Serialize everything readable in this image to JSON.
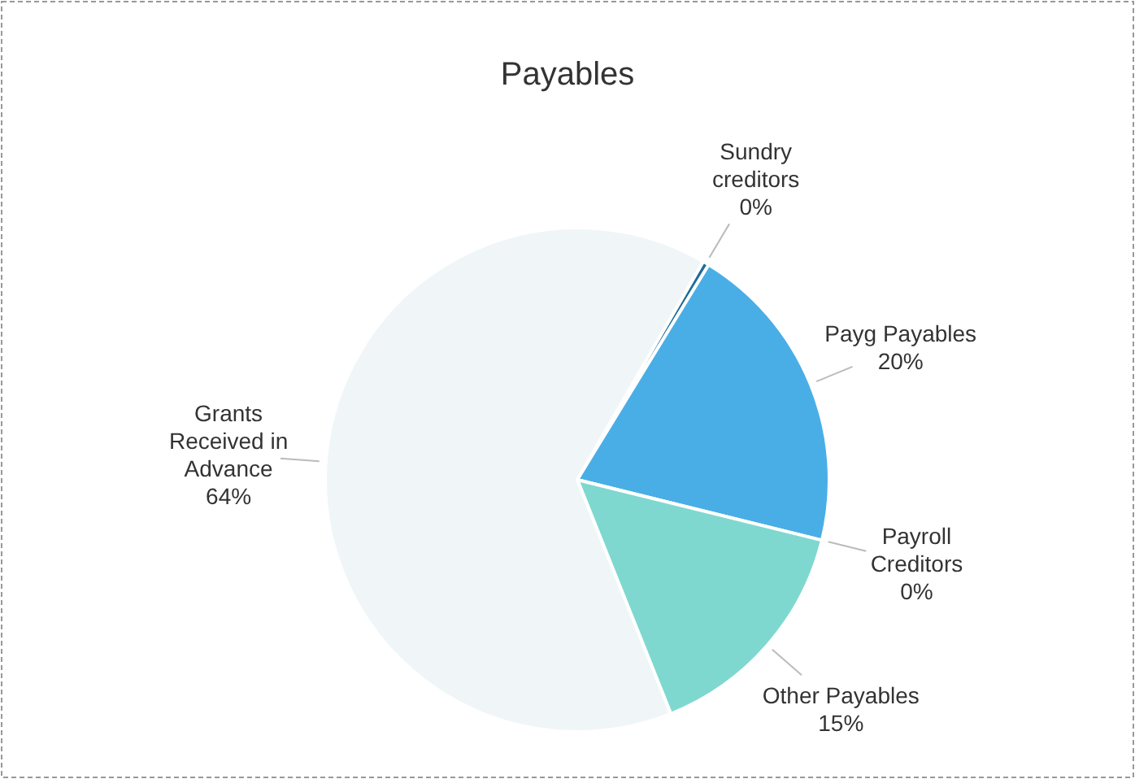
{
  "chart_data": {
    "type": "pie",
    "title": "Payables",
    "categories": [
      "Sundry creditors",
      "Payg Payables",
      "Payroll Creditors",
      "Other Payables",
      "Grants Received in Advance"
    ],
    "values": [
      0.4,
      20,
      0,
      15,
      64
    ],
    "value_labels": [
      "0%",
      "20%",
      "0%",
      "15%",
      "64%"
    ],
    "colors": [
      "#1f6e99",
      "#4aaee6",
      "#3a8fc0",
      "#7fd8d0",
      "#f0f6f8"
    ]
  }
}
